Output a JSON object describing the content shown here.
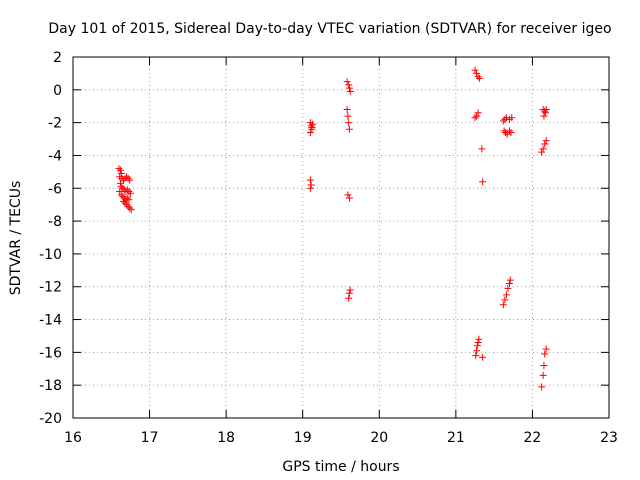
{
  "chart_data": {
    "type": "scatter",
    "title": "Day 101 of 2015, Sidereal Day-to-day VTEC variation (SDTVAR) for receiver igeo",
    "xlabel": "GPS time / hours",
    "ylabel": "SDTVAR / TECUs",
    "xlim": [
      16,
      23
    ],
    "ylim": [
      -20,
      2
    ],
    "xticks": [
      16,
      17,
      18,
      19,
      20,
      21,
      22,
      23
    ],
    "yticks": [
      2,
      0,
      -2,
      -4,
      -6,
      -8,
      -10,
      -12,
      -14,
      -16,
      -18,
      -20
    ],
    "grid": true,
    "marker": "+",
    "series": [
      {
        "name": "SDTVAR",
        "color": "#ff0000",
        "points": [
          [
            16.6,
            -4.8
          ],
          [
            16.62,
            -4.9
          ],
          [
            16.63,
            -5.1
          ],
          [
            16.61,
            -5.3
          ],
          [
            16.64,
            -5.4
          ],
          [
            16.66,
            -5.5
          ],
          [
            16.68,
            -5.4
          ],
          [
            16.7,
            -5.3
          ],
          [
            16.72,
            -5.4
          ],
          [
            16.74,
            -5.5
          ],
          [
            16.62,
            -5.7
          ],
          [
            16.63,
            -5.9
          ],
          [
            16.65,
            -6.0
          ],
          [
            16.67,
            -6.1
          ],
          [
            16.69,
            -6.2
          ],
          [
            16.71,
            -6.1
          ],
          [
            16.73,
            -6.2
          ],
          [
            16.75,
            -6.3
          ],
          [
            16.61,
            -6.2
          ],
          [
            16.63,
            -6.4
          ],
          [
            16.65,
            -6.5
          ],
          [
            16.67,
            -6.6
          ],
          [
            16.69,
            -6.7
          ],
          [
            16.71,
            -6.6
          ],
          [
            16.73,
            -6.7
          ],
          [
            16.66,
            -6.8
          ],
          [
            16.68,
            -6.9
          ],
          [
            16.7,
            -7.0
          ],
          [
            16.72,
            -7.1
          ],
          [
            16.74,
            -7.2
          ],
          [
            16.76,
            -7.3
          ],
          [
            19.1,
            -2.0
          ],
          [
            19.11,
            -2.2
          ],
          [
            19.12,
            -2.4
          ],
          [
            19.1,
            -2.6
          ],
          [
            19.12,
            -2.3
          ],
          [
            19.13,
            -2.1
          ],
          [
            19.1,
            -5.5
          ],
          [
            19.11,
            -5.8
          ],
          [
            19.1,
            -6.0
          ],
          [
            19.58,
            0.5
          ],
          [
            19.6,
            0.3
          ],
          [
            19.61,
            0.1
          ],
          [
            19.62,
            -0.1
          ],
          [
            19.58,
            -1.2
          ],
          [
            19.59,
            -1.6
          ],
          [
            19.6,
            -2.0
          ],
          [
            19.61,
            -2.4
          ],
          [
            19.59,
            -6.4
          ],
          [
            19.61,
            -6.6
          ],
          [
            19.62,
            -12.2
          ],
          [
            19.61,
            -12.4
          ],
          [
            19.6,
            -12.7
          ],
          [
            21.25,
            1.2
          ],
          [
            21.27,
            1.0
          ],
          [
            21.29,
            0.8
          ],
          [
            21.31,
            0.7
          ],
          [
            21.25,
            -1.7
          ],
          [
            21.27,
            -1.6
          ],
          [
            21.29,
            -1.4
          ],
          [
            21.34,
            -3.6
          ],
          [
            21.35,
            -5.6
          ],
          [
            21.26,
            -16.2
          ],
          [
            21.27,
            -15.9
          ],
          [
            21.28,
            -15.6
          ],
          [
            21.29,
            -15.4
          ],
          [
            21.3,
            -15.2
          ],
          [
            21.35,
            -16.3
          ],
          [
            21.62,
            -1.9
          ],
          [
            21.64,
            -1.8
          ],
          [
            21.66,
            -1.7
          ],
          [
            21.7,
            -1.8
          ],
          [
            21.73,
            -1.7
          ],
          [
            21.63,
            -2.5
          ],
          [
            21.65,
            -2.6
          ],
          [
            21.67,
            -2.7
          ],
          [
            21.7,
            -2.5
          ],
          [
            21.72,
            -2.6
          ],
          [
            21.62,
            -13.1
          ],
          [
            21.64,
            -12.8
          ],
          [
            21.66,
            -12.5
          ],
          [
            21.68,
            -12.1
          ],
          [
            21.7,
            -11.8
          ],
          [
            21.71,
            -11.6
          ],
          [
            22.14,
            -1.2
          ],
          [
            22.16,
            -1.3
          ],
          [
            22.18,
            -1.2
          ],
          [
            22.15,
            -1.6
          ],
          [
            22.17,
            -1.4
          ],
          [
            22.12,
            -3.8
          ],
          [
            22.14,
            -3.6
          ],
          [
            22.16,
            -3.3
          ],
          [
            22.18,
            -3.1
          ],
          [
            22.18,
            -15.8
          ],
          [
            22.16,
            -16.1
          ],
          [
            22.15,
            -16.8
          ],
          [
            22.14,
            -17.4
          ],
          [
            22.12,
            -18.1
          ]
        ]
      }
    ]
  }
}
